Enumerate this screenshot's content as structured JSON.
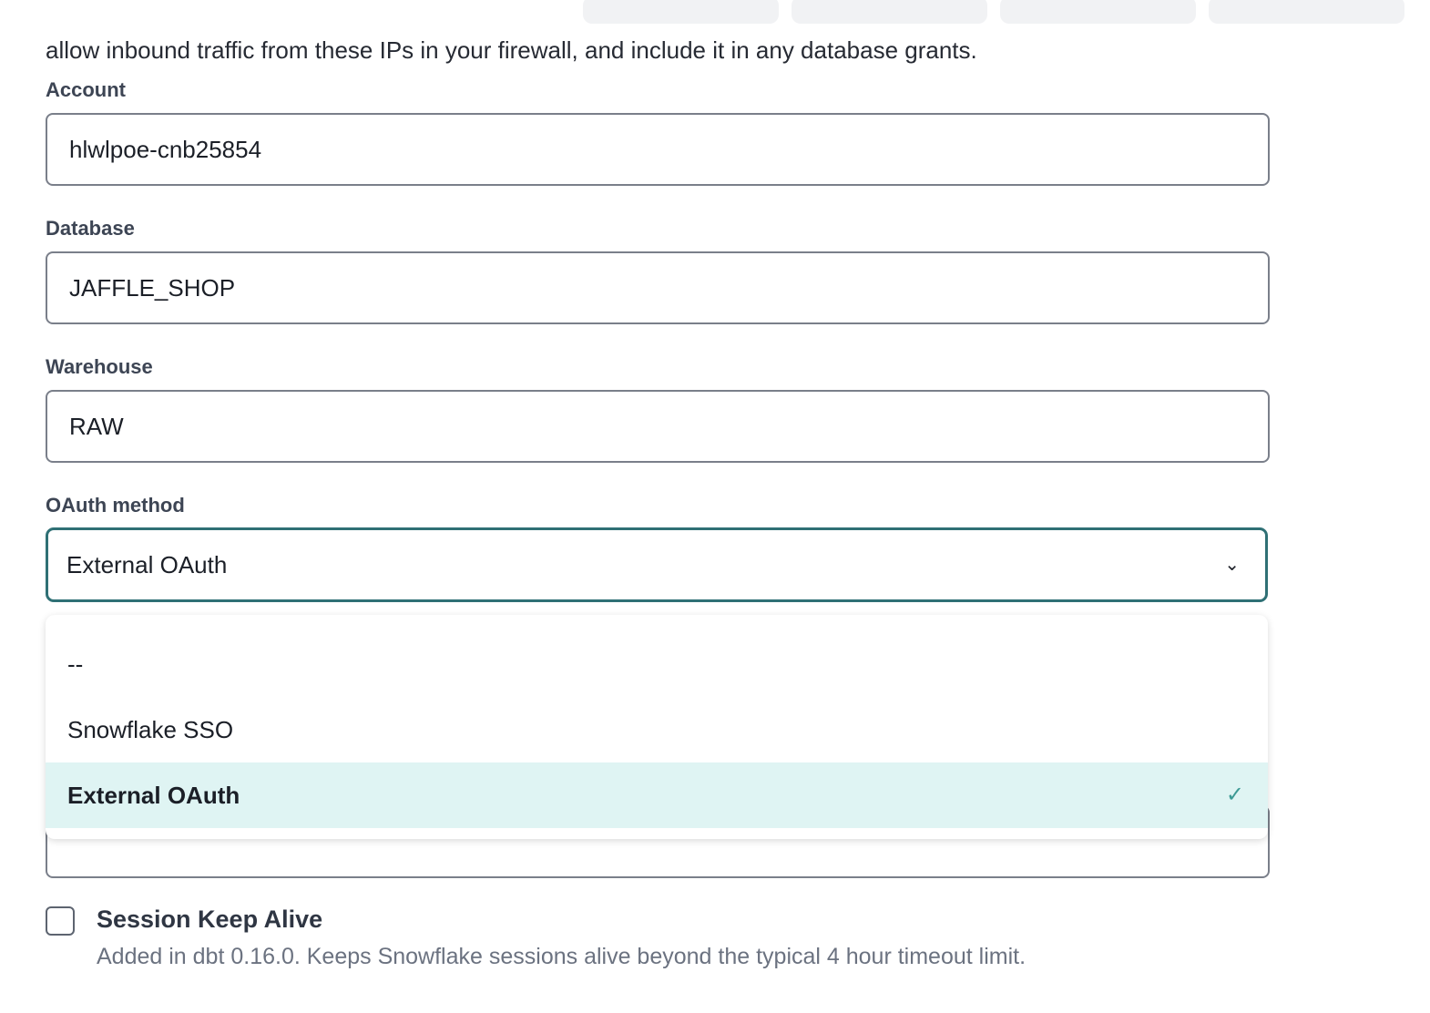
{
  "intro": {
    "line2": "allow inbound traffic from these IPs in your firewall, and include it in any database grants."
  },
  "fields": [
    {
      "label": "Account",
      "value": "hlwlpoe-cnb25854"
    },
    {
      "label": "Database",
      "value": "JAFFLE_SHOP"
    },
    {
      "label": "Warehouse",
      "value": "RAW"
    }
  ],
  "oauth": {
    "label": "OAuth method",
    "value": "External OAuth",
    "options": [
      "--",
      "Snowflake SSO",
      "External OAuth"
    ],
    "selected_index": 2
  },
  "session": {
    "label": "Session Keep Alive",
    "help": "Added in dbt 0.16.0. Keeps Snowflake sessions alive beyond the typical 4 hour timeout limit.",
    "checked": false
  },
  "colors": {
    "accent": "#2f7075",
    "selected_bg": "#dff4f3"
  }
}
